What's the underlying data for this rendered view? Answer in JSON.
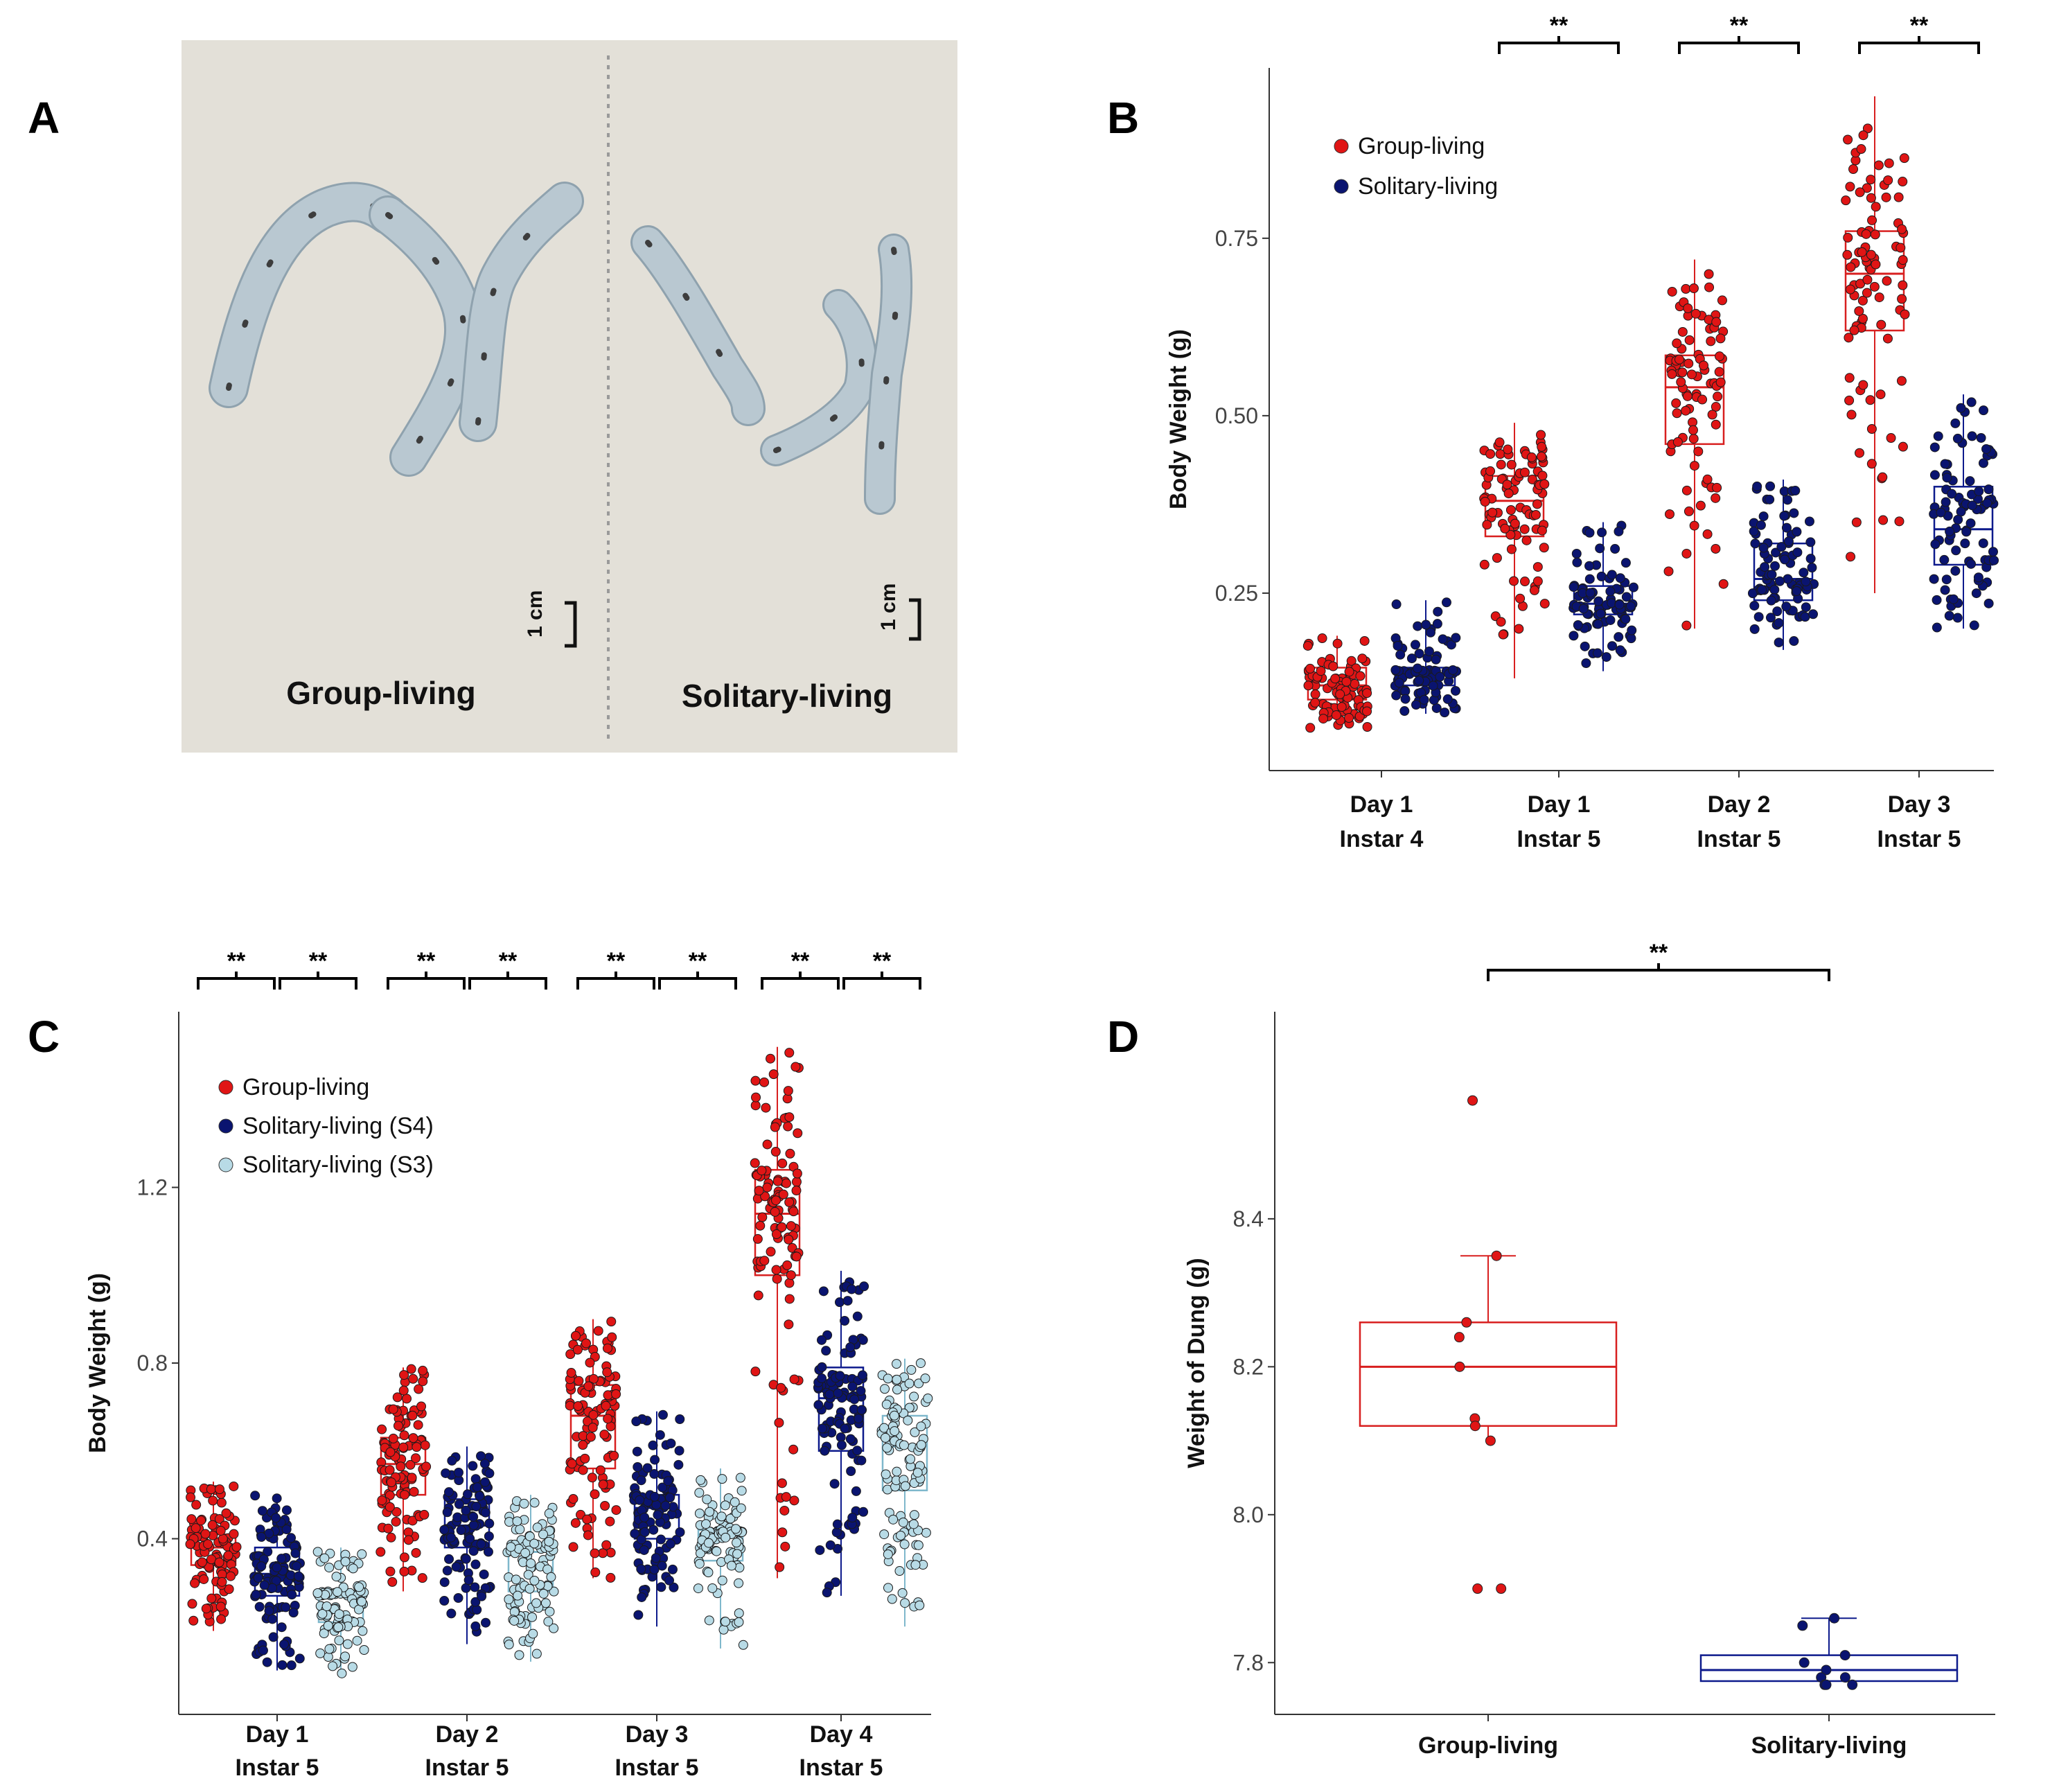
{
  "panels": {
    "A": "A",
    "B": "B",
    "C": "C",
    "D": "D"
  },
  "photo": {
    "group_label": "Group-living",
    "solitary_label": "Solitary-living",
    "scale_left": "1 cm",
    "scale_right": "1 cm"
  },
  "colors": {
    "group": "#d81f1f",
    "group_dot": "#e01515",
    "solitary_s4": "#0d1a8c",
    "solitary_s4_dot": "#0a1470",
    "solitary_s3": "#7fb8cc",
    "solitary_s3_dot": "#b8dbe6",
    "photo_bg": "#e3e0d8",
    "larva": "#b9c8d1"
  },
  "chart_data": [
    {
      "id": "B",
      "type": "box",
      "title": "",
      "ylabel": "Body Weight (g)",
      "xlabel": "",
      "ylim": [
        0.0,
        0.99
      ],
      "yticks": [
        0.25,
        0.5,
        0.75
      ],
      "ytick_labels": [
        "0.25",
        "0.50",
        "0.75"
      ],
      "legend": [
        "Group-living",
        "Solitary-living"
      ],
      "legend_position": "top-left",
      "categories": [
        {
          "line1": "Day 1",
          "line2": "Instar 4"
        },
        {
          "line1": "Day 1",
          "line2": "Instar 5"
        },
        {
          "line1": "Day 2",
          "line2": "Instar 5"
        },
        {
          "line1": "Day 3",
          "line2": "Instar 5"
        }
      ],
      "series": [
        {
          "name": "Group-living",
          "color_key": "group",
          "n": 90,
          "boxes": [
            {
              "min": 0.06,
              "q1": 0.1,
              "median": 0.12,
              "q3": 0.145,
              "max": 0.19
            },
            {
              "min": 0.13,
              "q1": 0.33,
              "median": 0.38,
              "q3": 0.415,
              "max": 0.49
            },
            {
              "min": 0.2,
              "q1": 0.46,
              "median": 0.54,
              "q3": 0.585,
              "max": 0.72
            },
            {
              "min": 0.25,
              "q1": 0.62,
              "median": 0.7,
              "q3": 0.76,
              "max": 0.95
            }
          ]
        },
        {
          "name": "Solitary-living",
          "color_key": "solitary_s4",
          "n": 90,
          "boxes": [
            {
              "min": 0.08,
              "q1": 0.12,
              "median": 0.135,
              "q3": 0.145,
              "max": 0.24
            },
            {
              "min": 0.14,
              "q1": 0.22,
              "median": 0.235,
              "q3": 0.26,
              "max": 0.35
            },
            {
              "min": 0.17,
              "q1": 0.24,
              "median": 0.27,
              "q3": 0.32,
              "max": 0.41
            },
            {
              "min": 0.2,
              "q1": 0.29,
              "median": 0.34,
              "q3": 0.4,
              "max": 0.53
            }
          ]
        }
      ],
      "significance": [
        {
          "category": 1,
          "from": 0,
          "to": 1,
          "label": "**"
        },
        {
          "category": 2,
          "from": 0,
          "to": 1,
          "label": "**"
        },
        {
          "category": 3,
          "from": 0,
          "to": 1,
          "label": "**"
        }
      ]
    },
    {
      "id": "C",
      "type": "box",
      "title": "",
      "ylabel": "Body Weight (g)",
      "xlabel": "",
      "ylim": [
        0.0,
        1.6
      ],
      "yticks": [
        0.4,
        0.8,
        1.2
      ],
      "ytick_labels": [
        "0.4",
        "0.8",
        "1.2"
      ],
      "legend": [
        "Group-living",
        "Solitary-living (S4)",
        "Solitary-living (S3)"
      ],
      "legend_position": "top-left",
      "categories": [
        {
          "line1": "Day 1",
          "line2": "Instar 5"
        },
        {
          "line1": "Day 2",
          "line2": "Instar 5"
        },
        {
          "line1": "Day 3",
          "line2": "Instar 5"
        },
        {
          "line1": "Day 4",
          "line2": "Instar 5"
        }
      ],
      "series": [
        {
          "name": "Group-living",
          "color_key": "group",
          "n": 110,
          "boxes": [
            {
              "min": 0.19,
              "q1": 0.34,
              "median": 0.38,
              "q3": 0.41,
              "max": 0.53
            },
            {
              "min": 0.28,
              "q1": 0.5,
              "median": 0.57,
              "q3": 0.63,
              "max": 0.79
            },
            {
              "min": 0.31,
              "q1": 0.56,
              "median": 0.68,
              "q3": 0.75,
              "max": 0.9
            },
            {
              "min": 0.31,
              "q1": 1.0,
              "median": 1.14,
              "q3": 1.24,
              "max": 1.52
            }
          ]
        },
        {
          "name": "Solitary-living (S4)",
          "color_key": "solitary_s4",
          "n": 110,
          "boxes": [
            {
              "min": 0.1,
              "q1": 0.27,
              "median": 0.32,
              "q3": 0.38,
              "max": 0.5
            },
            {
              "min": 0.16,
              "q1": 0.38,
              "median": 0.43,
              "q3": 0.49,
              "max": 0.61
            },
            {
              "min": 0.2,
              "q1": 0.4,
              "median": 0.47,
              "q3": 0.5,
              "max": 0.69
            },
            {
              "min": 0.27,
              "q1": 0.6,
              "median": 0.72,
              "q3": 0.79,
              "max": 1.01
            }
          ]
        },
        {
          "name": "Solitary-living (S3)",
          "color_key": "solitary_s3",
          "n": 110,
          "boxes": [
            {
              "min": 0.09,
              "q1": 0.21,
              "median": 0.27,
              "q3": 0.28,
              "max": 0.38
            },
            {
              "min": 0.12,
              "q1": 0.28,
              "median": 0.37,
              "q3": 0.39,
              "max": 0.5
            },
            {
              "min": 0.15,
              "q1": 0.35,
              "median": 0.41,
              "q3": 0.42,
              "max": 0.56
            },
            {
              "min": 0.2,
              "q1": 0.51,
              "median": 0.61,
              "q3": 0.68,
              "max": 0.81
            }
          ]
        }
      ],
      "significance": [
        {
          "category": 0,
          "from": 0,
          "to": 1,
          "label": "**"
        },
        {
          "category": 0,
          "from": 1,
          "to": 2,
          "label": "**"
        },
        {
          "category": 1,
          "from": 0,
          "to": 1,
          "label": "**"
        },
        {
          "category": 1,
          "from": 1,
          "to": 2,
          "label": "**"
        },
        {
          "category": 2,
          "from": 0,
          "to": 1,
          "label": "**"
        },
        {
          "category": 2,
          "from": 1,
          "to": 2,
          "label": "**"
        },
        {
          "category": 3,
          "from": 0,
          "to": 1,
          "label": "**"
        },
        {
          "category": 3,
          "from": 1,
          "to": 2,
          "label": "**"
        }
      ]
    },
    {
      "id": "D",
      "type": "box",
      "title": "",
      "ylabel": "Weight of Dung (g)",
      "xlabel": "",
      "ylim": [
        7.73,
        8.68
      ],
      "yticks": [
        7.8,
        8.0,
        8.2,
        8.4
      ],
      "ytick_labels": [
        "7.8",
        "8.0",
        "8.2",
        "8.4"
      ],
      "legend": [],
      "categories": [
        {
          "line1": "Group-living",
          "line2": ""
        },
        {
          "line1": "Solitary-living",
          "line2": ""
        }
      ],
      "series": [
        {
          "name": "Group-living",
          "color_key": "group",
          "boxes": [
            {
              "min": 8.1,
              "q1": 8.12,
              "median": 8.2,
              "q3": 8.26,
              "max": 8.35
            }
          ],
          "points": [
            8.56,
            8.35,
            8.26,
            8.24,
            8.2,
            8.13,
            8.12,
            8.1,
            7.9,
            7.9
          ]
        },
        {
          "name": "Solitary-living",
          "color_key": "solitary_s4",
          "boxes": [
            {
              "min": 7.77,
              "q1": 7.775,
              "median": 7.79,
              "q3": 7.81,
              "max": 7.86
            }
          ],
          "points": [
            7.86,
            7.85,
            7.81,
            7.8,
            7.79,
            7.78,
            7.78,
            7.77,
            7.77,
            7.77
          ]
        }
      ],
      "significance": [
        {
          "category": -1,
          "from": 0,
          "to": 1,
          "label": "**"
        }
      ]
    }
  ]
}
